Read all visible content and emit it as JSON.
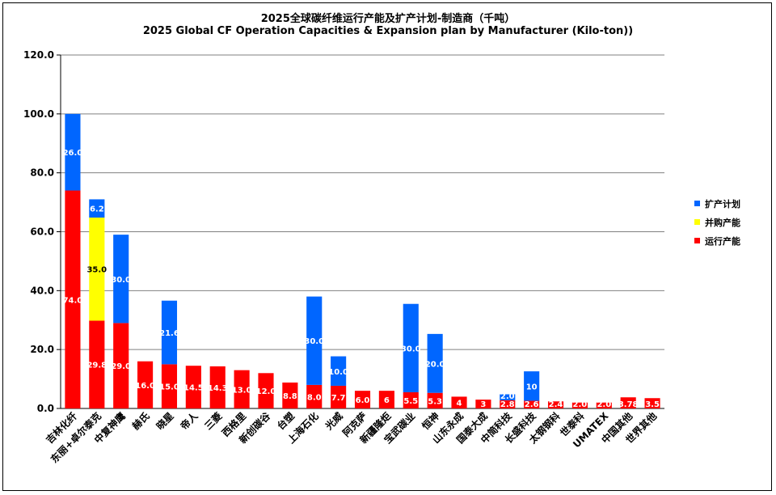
{
  "chart_data": {
    "type": "bar",
    "stacked": true,
    "title": "2025全球碳纤维运行产能及扩产计划-制造商（千吨）",
    "subtitle": "2025 Global CF Operation Capacities & Expansion plan by Manufacturer (Kilo-ton))",
    "xlabel": "",
    "ylabel": "",
    "ylim": [
      0,
      120
    ],
    "yticks": [
      "0.0",
      "20.0",
      "40.0",
      "60.0",
      "80.0",
      "100.0",
      "120.0"
    ],
    "grid": true,
    "legend_position": "right",
    "categories": [
      "吉林化纤",
      "东丽+卓尔泰克",
      "中复神鹰",
      "赫氏",
      "晓星",
      "帝人",
      "三菱",
      "西格里",
      "新创碳谷",
      "台塑",
      "上海石化",
      "光威",
      "阿克萨",
      "新疆隆炬",
      "宝武碳业",
      "恒神",
      "山东永成",
      "国泰大成",
      "中简科技",
      "长盛科技",
      "太钢钢科",
      "世泰科",
      "UMATEX",
      "中国其他",
      "世界其他"
    ],
    "series": [
      {
        "name": "运行产能",
        "color": "#ff0000",
        "values": [
          74.0,
          29.8,
          29.0,
          16.0,
          15.0,
          14.5,
          14.3,
          13.0,
          12.0,
          8.8,
          8.0,
          7.7,
          6.0,
          6,
          5.5,
          5.3,
          4,
          3,
          2.8,
          2.6,
          2.4,
          2.0,
          2.0,
          3.78,
          3.5
        ],
        "labels": [
          "74.0",
          "29.8",
          "29.0",
          "16.0",
          "15.0",
          "14.5",
          "14.3",
          "13.0",
          "12.0",
          "8.8",
          "8.0",
          "7.7",
          "6.0",
          "6",
          "5.5",
          "5.3",
          "4",
          "3",
          "2.8",
          "2.6",
          "2.4",
          "2.0",
          "2.0",
          "3.78",
          "3.5"
        ]
      },
      {
        "name": "并购产能",
        "color": "#ffff00",
        "values": [
          0,
          35.0,
          0,
          0,
          0,
          0,
          0,
          0,
          0,
          0,
          0,
          0,
          0,
          0,
          0,
          0,
          0,
          0,
          0,
          0,
          0,
          0,
          0,
          0,
          0
        ],
        "labels": [
          "",
          "35.0",
          "",
          "",
          "",
          "",
          "",
          "",
          "",
          "",
          "",
          "",
          "",
          "",
          "",
          "",
          "",
          "",
          "",
          "",
          "",
          "",
          "",
          "",
          ""
        ]
      },
      {
        "name": "扩产计划",
        "color": "#0066ff",
        "values": [
          26.0,
          6.2,
          30.0,
          0,
          21.6,
          0,
          0,
          0,
          0,
          0,
          30.0,
          10.0,
          0,
          0,
          30.0,
          20.0,
          0,
          0,
          2.0,
          10,
          0,
          0,
          0,
          0,
          0
        ],
        "labels": [
          "26.0",
          "6.2",
          "30.0",
          "",
          "21.6",
          "",
          "",
          "",
          "",
          "",
          "30.0",
          "10.0",
          "",
          "",
          "30.0",
          "20.0",
          "",
          "",
          "2.0",
          "10",
          "",
          "",
          "",
          "",
          ""
        ]
      }
    ],
    "legend": [
      "扩产计划",
      "并购产能",
      "运行产能"
    ]
  }
}
